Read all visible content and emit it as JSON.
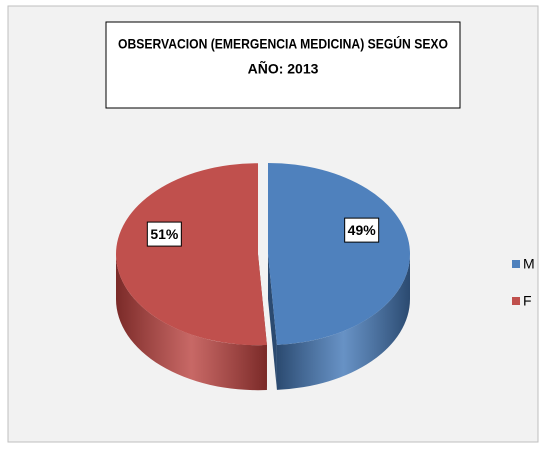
{
  "chart_data": {
    "type": "pie",
    "title": "OBSERVACION (EMERGENCIA MEDICINA) SEGÚN SEXO",
    "subtitle": "AÑO: 2013",
    "categories": [
      "M",
      "F"
    ],
    "values": [
      49,
      51
    ],
    "value_labels": [
      "49%",
      "51%"
    ],
    "colors": [
      "#4f81bd",
      "#c0504d"
    ],
    "side_colors": [
      "#2b4a70",
      "#7a2a28"
    ],
    "exploded": [
      false,
      true
    ],
    "legend": "right"
  }
}
